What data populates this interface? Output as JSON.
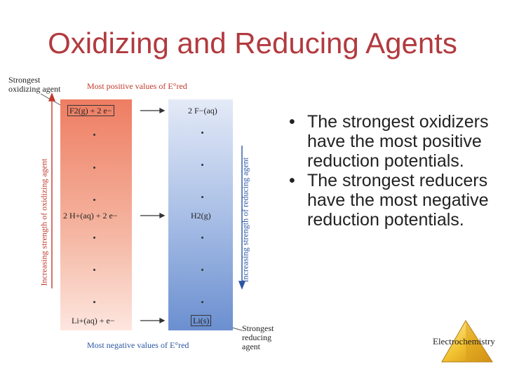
{
  "slide": {
    "title": "Oxidizing and Reducing Agents",
    "bullets": [
      "The strongest oxidizers have the most positive reduction potentials.",
      "The strongest reducers have the most negative reduction potentials."
    ],
    "footer": "Electrochemistry"
  },
  "figure": {
    "label_strongest_oxidizing": [
      "Strongest",
      "oxidizing agent"
    ],
    "label_most_positive": "Most positive values of E°red",
    "label_most_negative": "Most negative values of E°red",
    "label_strongest_reducing": [
      "Strongest",
      "reducing",
      "agent"
    ],
    "label_increasing_oxidizing": "Increasing strength of oxidizing agent",
    "label_increasing_reducing": "Increasing strength of reducing agent",
    "reactions": [
      {
        "left": "F2(g) + 2 e−",
        "right": "2 F−(aq)"
      },
      {
        "left": "2 H+(aq) + 2 e−",
        "right": "H2(g)"
      },
      {
        "left": "Li+(aq) + e−",
        "right": "Li(s)"
      }
    ]
  },
  "colors": {
    "title": "#b23a3f",
    "red_text": "#c0392b",
    "blue_text": "#2a55a3",
    "red_column": "#ee7d62",
    "blue_column": "#6b8fd0"
  }
}
